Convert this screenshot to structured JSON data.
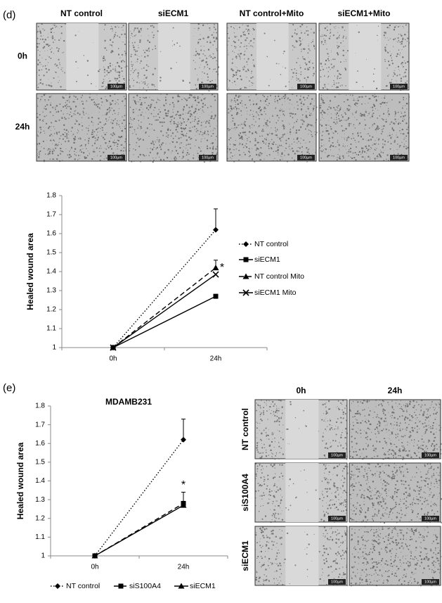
{
  "panel_d": {
    "label": "(d)",
    "columns": [
      "NT control",
      "siECM1",
      "NT control+Mito",
      "siECM1+Mito"
    ],
    "rows": [
      "0h",
      "24h"
    ],
    "scale_bar": "100µm"
  },
  "panel_e": {
    "label": "(e)",
    "columns": [
      "0h",
      "24h"
    ],
    "rows": [
      "NT control",
      "siS100A4",
      "siECM1"
    ]
  },
  "chart_data": [
    {
      "type": "line",
      "ylabel": "Healed wound area",
      "categories": [
        "0h",
        "24h"
      ],
      "series": [
        {
          "name": "NT control",
          "color": "#000000",
          "line_style": "dotted",
          "marker": "diamond",
          "values": [
            1,
            1.62
          ],
          "errors": [
            null,
            0.11
          ]
        },
        {
          "name": "siECM1",
          "color": "#000000",
          "line_style": "solid",
          "marker": "square",
          "values": [
            1,
            1.27
          ],
          "errors": [
            null,
            null
          ]
        },
        {
          "name": "NT control Mito",
          "color": "#000000",
          "line_style": "dashed",
          "marker": "triangle",
          "values": [
            1,
            1.42
          ],
          "errors": [
            null,
            0.04
          ]
        },
        {
          "name": "siECM1 Mito",
          "color": "#000000",
          "line_style": "solid",
          "marker": "x",
          "values": [
            1,
            1.385
          ],
          "errors": [
            null,
            null
          ]
        }
      ],
      "ylim": [
        1,
        1.8
      ],
      "yticks": [
        1,
        1.1,
        1.2,
        1.3,
        1.4,
        1.5,
        1.6,
        1.7,
        1.8
      ],
      "annotation": "*",
      "legend": "right"
    },
    {
      "type": "line",
      "title": "MDAMB231",
      "ylabel": "Healed wound area",
      "categories": [
        "0h",
        "24h"
      ],
      "series": [
        {
          "name": "NT control",
          "color": "#000000",
          "line_style": "dotted",
          "marker": "diamond",
          "values": [
            1,
            1.62
          ],
          "errors": [
            null,
            0.11
          ]
        },
        {
          "name": "siS100A4",
          "color": "#000000",
          "line_style": "dashed",
          "marker": "square",
          "values": [
            1,
            1.28
          ],
          "errors": [
            null,
            0.06
          ]
        },
        {
          "name": "siECM1",
          "color": "#000000",
          "line_style": "solid",
          "marker": "triangle",
          "values": [
            1,
            1.27
          ],
          "errors": [
            null,
            null
          ]
        }
      ],
      "ylim": [
        1,
        1.8
      ],
      "yticks": [
        1,
        1.1,
        1.2,
        1.3,
        1.4,
        1.5,
        1.6,
        1.7,
        1.8
      ],
      "annotation": "*",
      "legend": "bottom"
    }
  ]
}
